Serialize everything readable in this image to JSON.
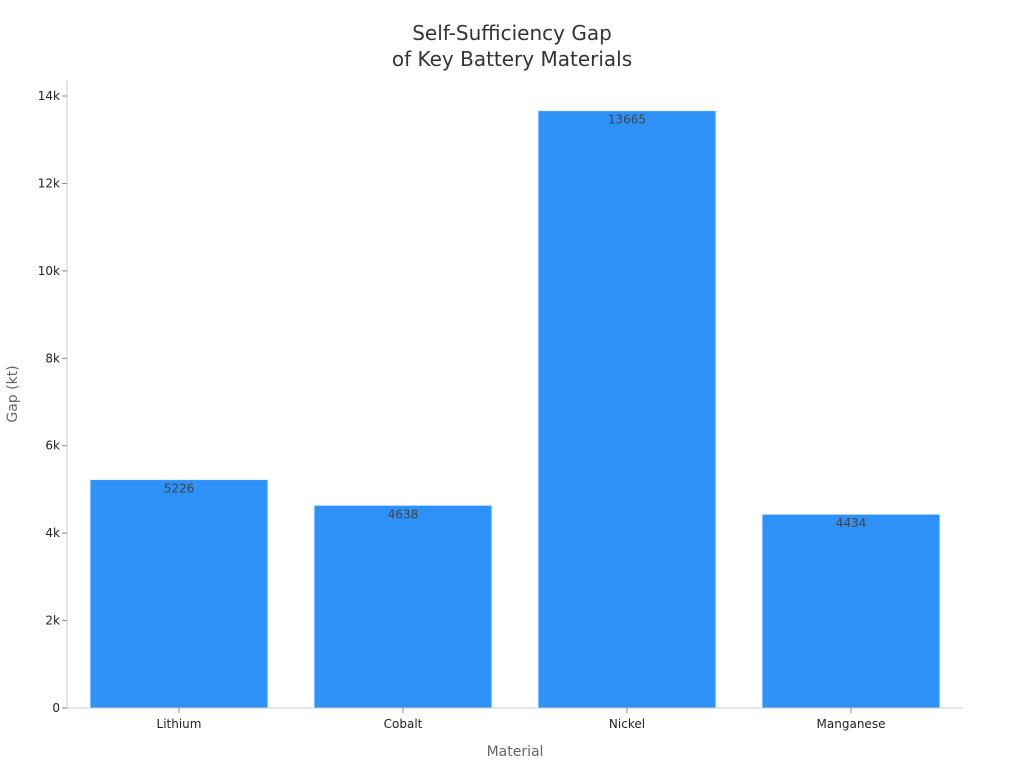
{
  "chart_data": {
    "type": "bar",
    "title_lines": [
      "Self-Sufficiency Gap",
      "of Key Battery Materials"
    ],
    "xlabel": "Material",
    "ylabel": "Gap (kt)",
    "categories": [
      "Lithium",
      "Cobalt",
      "Nickel",
      "Manganese"
    ],
    "values": [
      5226,
      4638,
      13665,
      4434
    ],
    "data_labels": [
      "5226",
      "4638",
      "13665",
      "4434"
    ],
    "ylim": [
      0,
      14000
    ],
    "yticks": [
      0,
      2000,
      4000,
      6000,
      8000,
      10000,
      12000,
      14000
    ],
    "ytick_labels": [
      "0",
      "2k",
      "4k",
      "6k",
      "8k",
      "10k",
      "12k",
      "14k"
    ],
    "grid": false,
    "bar_color": "#2e91f8",
    "legend": "none"
  }
}
